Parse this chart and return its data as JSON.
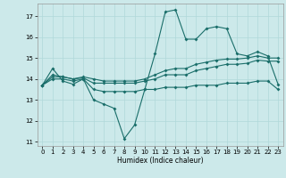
{
  "x": [
    0,
    1,
    2,
    3,
    4,
    5,
    6,
    7,
    8,
    9,
    10,
    11,
    12,
    13,
    14,
    15,
    16,
    17,
    18,
    19,
    20,
    21,
    22,
    23
  ],
  "line_main": [
    13.7,
    14.5,
    13.9,
    13.75,
    14.0,
    13.0,
    12.8,
    12.6,
    11.15,
    11.8,
    13.5,
    15.2,
    17.2,
    17.3,
    15.9,
    15.9,
    16.4,
    16.5,
    16.4,
    15.2,
    15.1,
    15.3,
    15.1,
    13.75
  ],
  "line_flat1": [
    13.7,
    14.0,
    14.0,
    13.9,
    14.0,
    13.5,
    13.4,
    13.4,
    13.4,
    13.4,
    13.5,
    13.5,
    13.6,
    13.6,
    13.6,
    13.7,
    13.7,
    13.7,
    13.8,
    13.8,
    13.8,
    13.9,
    13.9,
    13.5
  ],
  "line_flat2": [
    13.7,
    14.1,
    14.1,
    14.0,
    14.05,
    13.8,
    13.8,
    13.8,
    13.8,
    13.8,
    13.9,
    14.0,
    14.2,
    14.2,
    14.2,
    14.4,
    14.5,
    14.6,
    14.7,
    14.7,
    14.75,
    14.9,
    14.85,
    14.85
  ],
  "line_flat3": [
    13.7,
    14.2,
    14.1,
    14.0,
    14.1,
    14.0,
    13.9,
    13.9,
    13.9,
    13.9,
    14.0,
    14.2,
    14.4,
    14.5,
    14.5,
    14.7,
    14.8,
    14.9,
    14.95,
    14.95,
    15.0,
    15.1,
    15.0,
    15.0
  ],
  "bg_color": "#cce9ea",
  "grid_color": "#b0d8da",
  "line_color": "#1a6e6a",
  "ylim": [
    10.8,
    17.6
  ],
  "xlim": [
    -0.5,
    23.5
  ],
  "yticks": [
    11,
    12,
    13,
    14,
    15,
    16,
    17
  ],
  "xticks": [
    0,
    1,
    2,
    3,
    4,
    5,
    6,
    7,
    8,
    9,
    10,
    11,
    12,
    13,
    14,
    15,
    16,
    17,
    18,
    19,
    20,
    21,
    22,
    23
  ],
  "xlabel": "Humidex (Indice chaleur)"
}
